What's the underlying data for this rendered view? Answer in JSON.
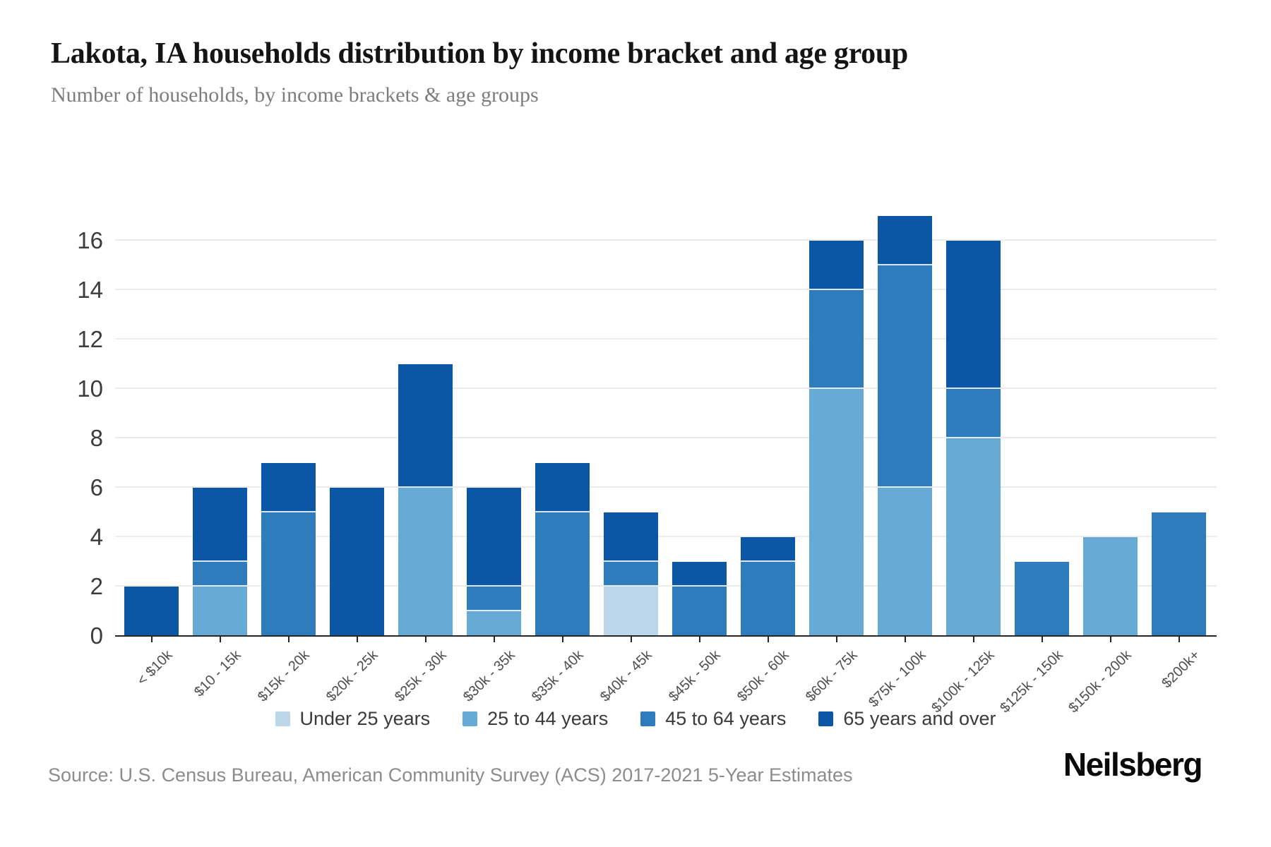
{
  "header": {
    "title": "Lakota, IA households distribution by income bracket and age group",
    "subtitle": "Number of households, by income brackets & age groups"
  },
  "chart_data": {
    "type": "bar",
    "stacked": true,
    "title": "Lakota, IA households distribution by income bracket and age group",
    "xlabel": "",
    "ylabel": "",
    "grid": true,
    "legend_position": "bottom",
    "ylim": [
      0,
      17.7
    ],
    "yticks": [
      0,
      2,
      4,
      6,
      8,
      10,
      12,
      14,
      16
    ],
    "categories": [
      "< $10k",
      "$10 - 15k",
      "$15k - 20k",
      "$20k - 25k",
      "$25k - 30k",
      "$30k - 35k",
      "$35k - 40k",
      "$40k - 45k",
      "$45k - 50k",
      "$50k - 60k",
      "$60k - 75k",
      "$75k - 100k",
      "$100k - 125k",
      "$125k - 150k",
      "$150k - 200k",
      "$200k+"
    ],
    "series": [
      {
        "name": "Under 25 years",
        "color": "#bdd7ea",
        "values": [
          0,
          0,
          0,
          0,
          0,
          0,
          0,
          2,
          0,
          0,
          0,
          0,
          0,
          0,
          0,
          0
        ]
      },
      {
        "name": "25 to 44 years",
        "color": "#68aad6",
        "values": [
          0,
          2,
          0,
          0,
          6,
          1,
          0,
          0,
          0,
          0,
          10,
          6,
          8,
          0,
          4,
          0
        ]
      },
      {
        "name": "45 to 64 years",
        "color": "#2e7cbc",
        "values": [
          0,
          1,
          5,
          0,
          0,
          1,
          5,
          1,
          2,
          3,
          4,
          9,
          2,
          3,
          0,
          5
        ]
      },
      {
        "name": "65 years and over",
        "color": "#0b57a6",
        "values": [
          2,
          3,
          2,
          6,
          5,
          4,
          2,
          2,
          1,
          1,
          2,
          2,
          6,
          0,
          0,
          0
        ]
      }
    ],
    "totals": [
      2,
      6,
      7,
      6,
      11,
      6,
      7,
      5,
      3,
      4,
      16,
      17,
      16,
      3,
      4,
      5
    ]
  },
  "footer": {
    "source": "Source: U.S. Census Bureau, American Community Survey (ACS) 2017-2021 5-Year Estimates",
    "logo": "Neilsberg"
  }
}
